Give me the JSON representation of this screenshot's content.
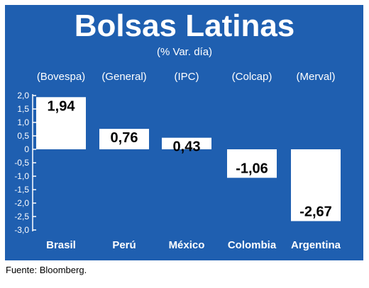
{
  "chart_data": {
    "type": "bar",
    "title": "Bolsas Latinas",
    "subtitle": "(% Var. día)",
    "categories": [
      "Brasil",
      "Perú",
      "México",
      "Colombia",
      "Argentina"
    ],
    "index_labels": [
      "(Bovespa)",
      "(General)",
      "(IPC)",
      "(Colcap)",
      "(Merval)"
    ],
    "values": [
      1.94,
      0.76,
      0.43,
      -1.06,
      -2.67
    ],
    "value_labels": [
      "1,94",
      "0,76",
      "0,43",
      "-1,06",
      "-2,67"
    ],
    "y_ticks": [
      "2,0",
      "1,5",
      "1,0",
      "0,5",
      "0",
      "-0,5",
      "-1,0",
      "-1,5",
      "-2,0",
      "-2,5",
      "-3,0"
    ],
    "ylim": [
      -3.0,
      2.0
    ],
    "grid": false,
    "colors": {
      "background": "#1f5fb0",
      "bar": "#ffffff",
      "text_light": "#ffffff",
      "text_dark": "#000000"
    }
  },
  "source": "Fuente: Bloomberg."
}
